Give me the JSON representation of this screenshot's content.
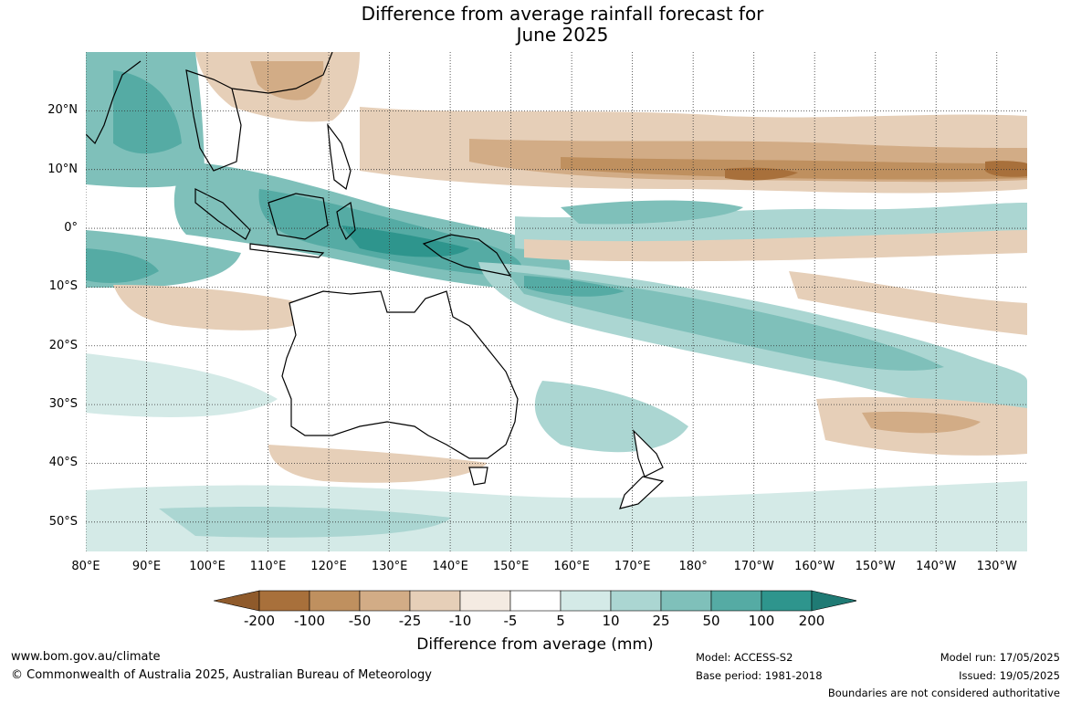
{
  "title_line1": "Difference from average rainfall forecast for",
  "title_line2": "June 2025",
  "map": {
    "lon_min": 80,
    "lon_max": 235,
    "lat_min": -55,
    "lat_max": 30,
    "lat_ticks": [
      {
        "lat": 20,
        "label": "20°N"
      },
      {
        "lat": 10,
        "label": "10°N"
      },
      {
        "lat": 0,
        "label": "0°"
      },
      {
        "lat": -10,
        "label": "10°S"
      },
      {
        "lat": -20,
        "label": "20°S"
      },
      {
        "lat": -30,
        "label": "30°S"
      },
      {
        "lat": -40,
        "label": "40°S"
      },
      {
        "lat": -50,
        "label": "50°S"
      }
    ],
    "lon_ticks": [
      {
        "lon": 80,
        "label": "80°E"
      },
      {
        "lon": 90,
        "label": "90°E"
      },
      {
        "lon": 100,
        "label": "100°E"
      },
      {
        "lon": 110,
        "label": "110°E"
      },
      {
        "lon": 120,
        "label": "120°E"
      },
      {
        "lon": 130,
        "label": "130°E"
      },
      {
        "lon": 140,
        "label": "140°E"
      },
      {
        "lon": 150,
        "label": "150°E"
      },
      {
        "lon": 160,
        "label": "160°E"
      },
      {
        "lon": 170,
        "label": "170°E"
      },
      {
        "lon": 180,
        "label": "180°"
      },
      {
        "lon": 190,
        "label": "170°W"
      },
      {
        "lon": 200,
        "label": "160°W"
      },
      {
        "lon": 210,
        "label": "150°W"
      },
      {
        "lon": 220,
        "label": "140°W"
      },
      {
        "lon": 230,
        "label": "130°W"
      }
    ]
  },
  "colorbar": {
    "labels": [
      "-200",
      "-100",
      "-50",
      "-25",
      "-10",
      "-5",
      "5",
      "10",
      "25",
      "50",
      "100",
      "200"
    ],
    "colors": [
      "#a8703b",
      "#bf905f",
      "#d2ac86",
      "#e6cfb8",
      "#f4ebe2",
      "#ffffff",
      "#d4eae7",
      "#abd6d2",
      "#7fc0ba",
      "#55aba4",
      "#2e958d"
    ],
    "under_color": "#8f5a2b",
    "over_color": "#1f7a74",
    "title": "Difference from average (mm)"
  },
  "footer": {
    "website": "www.bom.gov.au/climate",
    "copyright": "© Commonwealth of Australia 2025, Australian Bureau of Meteorology",
    "model": "Model: ACCESS-S2",
    "base_period": "Base period: 1981-2018",
    "model_run": "Model run: 17/05/2025",
    "issued": "Issued: 19/05/2025",
    "disclaimer": "Boundaries are not considered authoritative"
  }
}
